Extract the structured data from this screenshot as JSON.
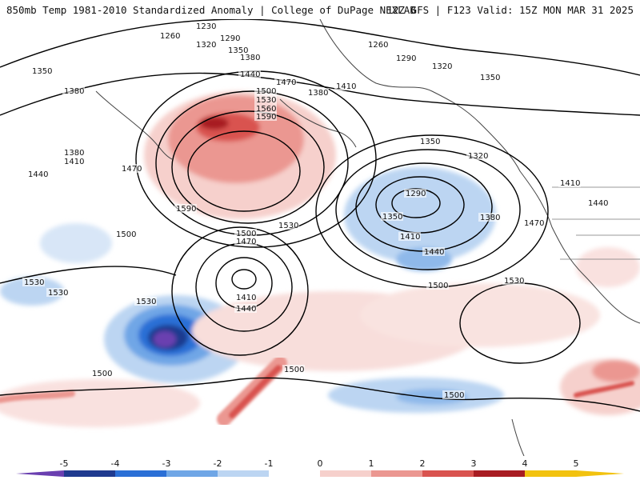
{
  "header": {
    "title": "850mb Temp 1981-2010 Standardized Anomaly | College of DuPage NEXLAB",
    "run_info": "12Z GFS | F123 Valid: 15Z MON MAR 31 2025"
  },
  "legend": {
    "ticks": [
      "-5",
      "-4",
      "-3",
      "-2",
      "-1",
      "0",
      "1",
      "2",
      "3",
      "4",
      "5"
    ],
    "colors": [
      "#6a3fb0",
      "#1f3a8f",
      "#2a6fd6",
      "#6fa6e6",
      "#bcd5f2",
      "#ffffff",
      "#f6d0cc",
      "#eb9791",
      "#d9534f",
      "#a81c22",
      "#f2c20f"
    ]
  },
  "isobar_labels": [
    "1230",
    "1260",
    "1290",
    "1320",
    "1350",
    "1260",
    "1290",
    "1320",
    "1350",
    "1380",
    "1440",
    "1350",
    "1380",
    "1410",
    "1380",
    "1470",
    "1500",
    "1530",
    "1560",
    "1590",
    "1380",
    "1410",
    "1440",
    "1470",
    "1590",
    "1500",
    "1530",
    "1350",
    "1320",
    "1290",
    "1350",
    "1380",
    "1410",
    "1440",
    "1410",
    "1440",
    "1470",
    "1500",
    "1530",
    "1530",
    "1530",
    "1500",
    "1470",
    "1410",
    "1440",
    "1530",
    "1500",
    "1500",
    "1500"
  ]
}
